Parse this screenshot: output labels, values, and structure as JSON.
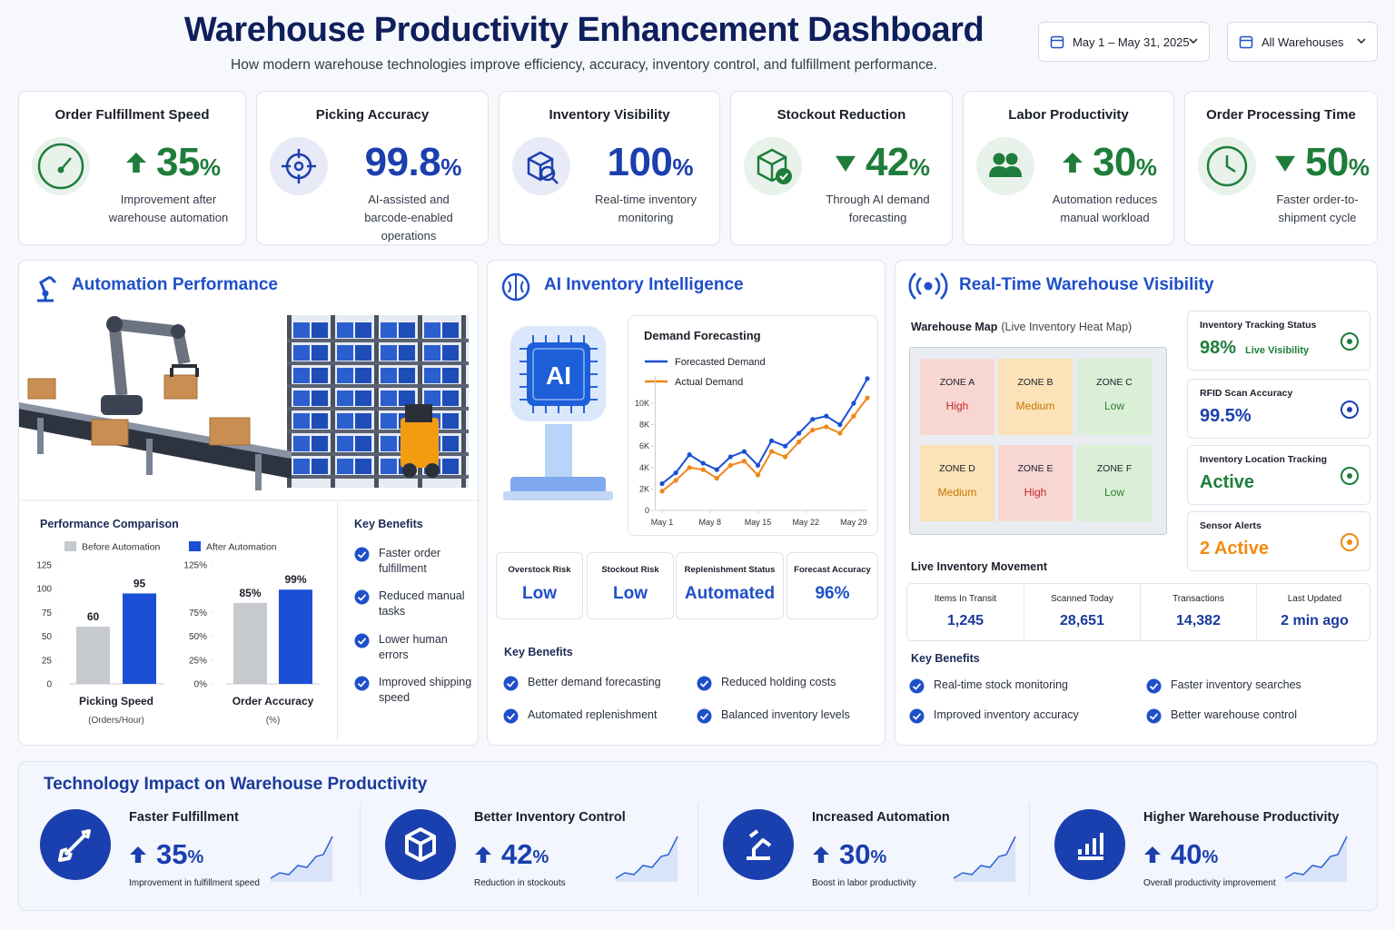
{
  "header": {
    "title": "Warehouse Productivity Enhancement Dashboard",
    "subtitle": "How modern warehouse technologies improve efficiency, accuracy, inventory control, and fulfillment performance.",
    "date_filter": "May 1 – May 31, 2025",
    "warehouse_filter": "All Warehouses"
  },
  "kpis": [
    {
      "title": "Order Fulfillment Speed",
      "trend": "up",
      "value": 35,
      "unit": "%",
      "description": "Improvement after warehouse automation",
      "color": "#1e7d3a",
      "icon": "gauge"
    },
    {
      "title": "Picking Accuracy",
      "value": 99.8,
      "unit": "%",
      "description": "AI-assisted and barcode-enabled operations",
      "color": "#1c3fae",
      "icon": "target"
    },
    {
      "title": "Inventory Visibility",
      "value": 100,
      "unit": "%",
      "description": "Real-time inventory monitoring",
      "color": "#1c3fae",
      "icon": "search"
    },
    {
      "title": "Stockout Reduction",
      "trend": "down",
      "value": 42,
      "unit": "%",
      "description": "Through AI demand forecasting",
      "color": "#1e7d3a",
      "icon": "box"
    },
    {
      "title": "Labor Productivity",
      "trend": "up",
      "value": 30,
      "unit": "%",
      "description": "Automation reduces manual workload",
      "color": "#1e7d3a",
      "icon": "people"
    },
    {
      "title": "Order Processing Time",
      "trend": "down",
      "value": 50,
      "unit": "%",
      "description": "Faster order-to-shipment cycle",
      "color": "#1e7d3a",
      "icon": "clock"
    }
  ],
  "automation": {
    "title": "Automation Performance",
    "comparison": {
      "title": "Performance Comparison",
      "legend": [
        {
          "name": "Before Automation",
          "color": "#c6c9ce"
        },
        {
          "name": "After Automation",
          "color": "#1a4fd6"
        }
      ],
      "charts": [
        {
          "type": "bar",
          "title": "Picking Speed",
          "subtitle": "(Orders/Hour)",
          "values": [
            60,
            95
          ],
          "ylim": [
            0,
            125
          ],
          "yticks": [
            0,
            25,
            50,
            75,
            100,
            125
          ]
        },
        {
          "type": "bar",
          "title": "Order Accuracy",
          "subtitle": "(%)",
          "values": [
            85,
            99
          ],
          "value_labels": [
            "85%",
            "99%"
          ],
          "ylim": [
            0,
            125
          ],
          "yticks": [
            {
              "value": 0,
              "label": "0%"
            },
            {
              "value": 25,
              "label": "25%"
            },
            {
              "value": 50,
              "label": "50%"
            },
            {
              "value": 75,
              "label": "75%"
            },
            {
              "value": 125,
              "label": "125%"
            }
          ]
        }
      ]
    },
    "benefits_title": "Key Benefits",
    "benefits": [
      "Faster order fulfillment",
      "Reduced manual tasks",
      "Lower human errors",
      "Improved shipping speed"
    ]
  },
  "ai": {
    "title": "AI Inventory Intelligence",
    "chip_label": "AI",
    "forecast": {
      "type": "line",
      "title": "Demand Forecasting",
      "x": [
        1,
        3,
        5,
        7,
        9,
        11,
        13,
        15,
        17,
        19,
        21,
        23,
        25,
        27,
        29,
        31
      ],
      "xlim": [
        0,
        31
      ],
      "xticks": [
        {
          "value": 1,
          "label": "May 1"
        },
        {
          "value": 8,
          "label": "May 8"
        },
        {
          "value": 15,
          "label": "May 15"
        },
        {
          "value": 22,
          "label": "May 22"
        },
        {
          "value": 29,
          "label": "May 29"
        }
      ],
      "ylim": [
        0,
        12500
      ],
      "yticks": [
        0,
        {
          "value": 2000,
          "label": "2K"
        },
        {
          "value": 4000,
          "label": "4K"
        },
        {
          "value": 6000,
          "label": "6K"
        },
        {
          "value": 8000,
          "label": "8K"
        },
        {
          "value": 10000,
          "label": "10K"
        }
      ],
      "series": [
        {
          "name": "Forecasted Demand",
          "color": "#1a4fd6",
          "values": [
            2500,
            3500,
            5200,
            4400,
            3800,
            5000,
            5500,
            4200,
            6500,
            6000,
            7200,
            8500,
            8800,
            8000,
            10000,
            12300
          ]
        },
        {
          "name": "Actual Demand",
          "color": "#f0861a",
          "values": [
            1800,
            2800,
            4000,
            3800,
            3000,
            4200,
            4600,
            3300,
            5500,
            5000,
            6400,
            7500,
            7800,
            7200,
            8800,
            10500
          ]
        }
      ]
    },
    "stats": [
      {
        "label": "Overstock Risk",
        "value": "Low"
      },
      {
        "label": "Stockout Risk",
        "value": "Low"
      },
      {
        "label": "Replenishment Status",
        "value": "Automated"
      },
      {
        "label": "Forecast Accuracy",
        "value": "96%"
      }
    ],
    "benefits_title": "Key Benefits",
    "benefits": [
      "Better demand forecasting",
      "Reduced holding costs",
      "Automated replenishment",
      "Balanced inventory levels"
    ]
  },
  "visibility": {
    "title": "Real-Time Warehouse Visibility",
    "map_title": "Warehouse Map",
    "map_subtitle": "(Live Inventory Heat Map)",
    "zones": [
      {
        "name": "ZONE A",
        "level": "High",
        "color": "#f8d7d3",
        "text_color": "#c62828"
      },
      {
        "name": "ZONE B",
        "level": "Medium",
        "color": "#fbe2b8",
        "text_color": "#c77800"
      },
      {
        "name": "ZONE C",
        "level": "Low",
        "color": "#d9efd6",
        "text_color": "#2e7d32"
      },
      {
        "name": "ZONE D",
        "level": "Medium",
        "color": "#fbe2b8",
        "text_color": "#c77800"
      },
      {
        "name": "ZONE E",
        "level": "High",
        "color": "#f8d7d3",
        "text_color": "#c62828"
      },
      {
        "name": "ZONE F",
        "level": "Low",
        "color": "#d9efd6",
        "text_color": "#2e7d32"
      }
    ],
    "status_cards": [
      {
        "title": "Inventory Tracking Status",
        "value": "98%",
        "note": "Live Visibility",
        "color": "#1e7d3a"
      },
      {
        "title": "RFID Scan Accuracy",
        "value": "99.5%",
        "color": "#1c3fae"
      },
      {
        "title": "Inventory Location Tracking",
        "value": "Active",
        "color": "#1e7d3a"
      },
      {
        "title": "Sensor Alerts",
        "value": "2 Active",
        "color": "#f08a12"
      }
    ],
    "movement_title": "Live Inventory Movement",
    "movement": [
      {
        "label": "Items In Transit",
        "value": "1,245"
      },
      {
        "label": "Scanned Today",
        "value": "28,651"
      },
      {
        "label": "Transactions",
        "value": "14,382"
      },
      {
        "label": "Last Updated",
        "value": "2 min ago"
      }
    ],
    "benefits_title": "Key Benefits",
    "benefits": [
      "Real-time stock monitoring",
      "Faster inventory searches",
      "Improved inventory accuracy",
      "Better warehouse control"
    ]
  },
  "impact": {
    "title": "Technology Impact on Warehouse Productivity",
    "items": [
      {
        "title": "Faster Fulfillment",
        "value": 35,
        "unit": "%",
        "description": "Improvement in fulfillment speed"
      },
      {
        "title": "Better Inventory Control",
        "value": 42,
        "unit": "%",
        "description": "Reduction in stockouts"
      },
      {
        "title": "Increased Automation",
        "value": 30,
        "unit": "%",
        "description": "Boost in labor productivity"
      },
      {
        "title": "Higher Warehouse Productivity",
        "value": 40,
        "unit": "%",
        "description": "Overall productivity improvement"
      }
    ]
  }
}
